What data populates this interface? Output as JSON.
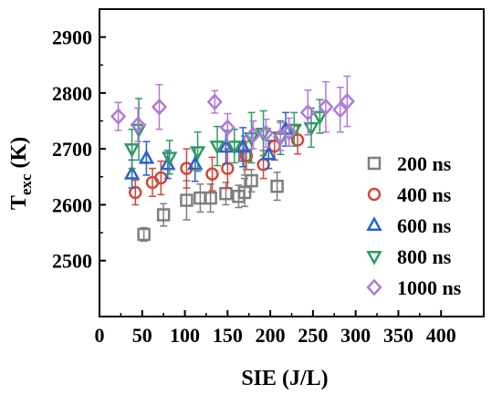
{
  "chart_data": {
    "type": "scatter",
    "xlabel": "SIE (J/L)",
    "ylabel_main": "T",
    "ylabel_sub": "exc",
    "ylabel_unit": " (K)",
    "xlim": [
      0,
      450
    ],
    "ylim": [
      2400,
      2950
    ],
    "xticks": [
      0,
      50,
      100,
      150,
      200,
      250,
      300,
      350,
      400
    ],
    "yticks": [
      2500,
      2600,
      2700,
      2800,
      2900
    ],
    "grid": false,
    "legend_position": "right",
    "series": [
      {
        "name": "200 ns",
        "marker": "square",
        "color": "#7f7f7f",
        "points": [
          {
            "x": 52,
            "y": 2547,
            "err": 12
          },
          {
            "x": 75,
            "y": 2582,
            "err": 20
          },
          {
            "x": 102,
            "y": 2608,
            "err": 35
          },
          {
            "x": 118,
            "y": 2612,
            "err": 25
          },
          {
            "x": 130,
            "y": 2612,
            "err": 25
          },
          {
            "x": 148,
            "y": 2620,
            "err": 20
          },
          {
            "x": 163,
            "y": 2615,
            "err": 20
          },
          {
            "x": 170,
            "y": 2622,
            "err": 25
          },
          {
            "x": 178,
            "y": 2643,
            "err": 20
          },
          {
            "x": 208,
            "y": 2633,
            "err": 25
          },
          {
            "x": 170,
            "y": 2688,
            "err": 35
          }
        ]
      },
      {
        "name": "400 ns",
        "marker": "circle",
        "color": "#d1493a",
        "points": [
          {
            "x": 42,
            "y": 2622,
            "err": 22
          },
          {
            "x": 62,
            "y": 2640,
            "err": 25
          },
          {
            "x": 72,
            "y": 2648,
            "err": 30
          },
          {
            "x": 102,
            "y": 2665,
            "err": 35
          },
          {
            "x": 132,
            "y": 2655,
            "err": 30
          },
          {
            "x": 150,
            "y": 2665,
            "err": 35
          },
          {
            "x": 172,
            "y": 2688,
            "err": 25
          },
          {
            "x": 192,
            "y": 2672,
            "err": 25
          },
          {
            "x": 205,
            "y": 2705,
            "err": 25
          },
          {
            "x": 232,
            "y": 2716,
            "err": 25
          }
        ]
      },
      {
        "name": "600 ns",
        "marker": "triangle-up",
        "color": "#2b62c9",
        "points": [
          {
            "x": 38,
            "y": 2655,
            "err": 25
          },
          {
            "x": 55,
            "y": 2683,
            "err": 30
          },
          {
            "x": 80,
            "y": 2672,
            "err": 25
          },
          {
            "x": 112,
            "y": 2672,
            "err": 30
          },
          {
            "x": 148,
            "y": 2703,
            "err": 30
          },
          {
            "x": 168,
            "y": 2703,
            "err": 35
          },
          {
            "x": 198,
            "y": 2690,
            "err": 25
          },
          {
            "x": 218,
            "y": 2735,
            "err": 30
          }
        ]
      },
      {
        "name": "800 ns",
        "marker": "triangle-down",
        "color": "#2f9a63",
        "points": [
          {
            "x": 38,
            "y": 2700,
            "err": 35
          },
          {
            "x": 46,
            "y": 2735,
            "err": 55
          },
          {
            "x": 82,
            "y": 2685,
            "err": 30
          },
          {
            "x": 115,
            "y": 2695,
            "err": 35
          },
          {
            "x": 138,
            "y": 2705,
            "err": 35
          },
          {
            "x": 158,
            "y": 2705,
            "err": 30
          },
          {
            "x": 178,
            "y": 2720,
            "err": 45
          },
          {
            "x": 192,
            "y": 2728,
            "err": 40
          },
          {
            "x": 212,
            "y": 2720,
            "err": 30
          },
          {
            "x": 228,
            "y": 2735,
            "err": 30
          },
          {
            "x": 248,
            "y": 2738,
            "err": 35
          },
          {
            "x": 258,
            "y": 2758,
            "err": 30
          }
        ]
      },
      {
        "name": "1000 ns",
        "marker": "diamond",
        "color": "#b07ad9",
        "points": [
          {
            "x": 22,
            "y": 2758,
            "err": 25
          },
          {
            "x": 45,
            "y": 2743,
            "err": 30
          },
          {
            "x": 70,
            "y": 2775,
            "err": 40
          },
          {
            "x": 135,
            "y": 2784,
            "err": 20
          },
          {
            "x": 150,
            "y": 2738,
            "err": 25
          },
          {
            "x": 180,
            "y": 2725,
            "err": 25
          },
          {
            "x": 195,
            "y": 2728,
            "err": 25
          },
          {
            "x": 212,
            "y": 2722,
            "err": 25
          },
          {
            "x": 222,
            "y": 2730,
            "err": 25
          },
          {
            "x": 244,
            "y": 2765,
            "err": 40
          },
          {
            "x": 265,
            "y": 2775,
            "err": 45
          },
          {
            "x": 282,
            "y": 2770,
            "err": 40
          },
          {
            "x": 290,
            "y": 2785,
            "err": 45
          }
        ]
      }
    ]
  }
}
